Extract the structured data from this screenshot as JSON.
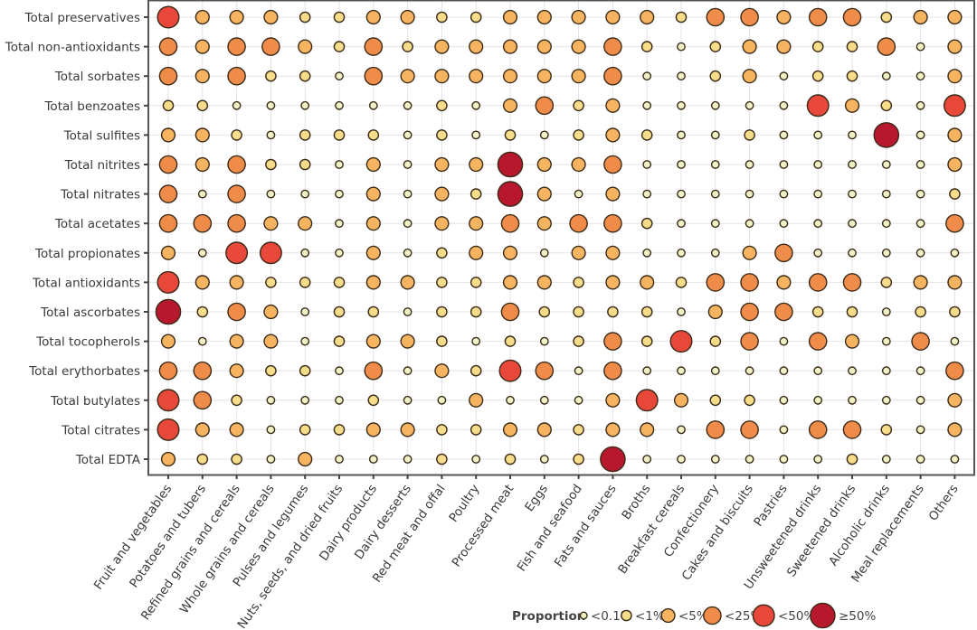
{
  "chart_data": {
    "type": "scatter",
    "subtype": "bubble-grid",
    "title": "",
    "xlabel": "",
    "ylabel": "",
    "grid": true,
    "rows": [
      "Total preservatives",
      "Total non-antioxidants",
      "Total sorbates",
      "Total benzoates",
      "Total sulfites",
      "Total nitrites",
      "Total nitrates",
      "Total acetates",
      "Total propionates",
      "Total antioxidants",
      "Total ascorbates",
      "Total tocopherols",
      "Total erythorbates",
      "Total butylates",
      "Total citrates",
      "Total EDTA"
    ],
    "columns": [
      "Fruit and vegetables",
      "Potatoes and tubers",
      "Refined grains and cereals",
      "Whole grains and cereals",
      "Pulses and legumes",
      "Nuts, seeds, and dried fruits",
      "Dairy products",
      "Dairy desserts",
      "Red meat and offal",
      "Poultry",
      "Processed meat",
      "Eggs",
      "Fish and seafood",
      "Fats and sauces",
      "Broths",
      "Breakfast cereals",
      "Confectionery",
      "Cakes and biscuits",
      "Pastries",
      "Unsweetened drinks",
      "Sweetened drinks",
      "Alcoholic drinks",
      "Meal replacements",
      "Others"
    ],
    "value_encoding": "category index into legend.categories (0 = <0.1% ... 5 = ≥50%)",
    "values": [
      [
        4,
        2,
        2,
        2,
        1,
        1,
        2,
        2,
        1,
        1,
        2,
        2,
        2,
        2,
        2,
        1,
        3,
        3,
        2,
        3,
        3,
        1,
        2,
        2
      ],
      [
        3,
        2,
        3,
        3,
        2,
        1,
        3,
        1,
        2,
        2,
        2,
        2,
        2,
        3,
        1,
        0,
        1,
        2,
        2,
        1,
        1,
        3,
        0,
        2
      ],
      [
        3,
        2,
        3,
        1,
        1,
        0,
        3,
        2,
        2,
        2,
        2,
        2,
        2,
        3,
        0,
        0,
        1,
        2,
        0,
        1,
        1,
        0,
        0,
        2
      ],
      [
        1,
        1,
        0,
        0,
        0,
        0,
        0,
        0,
        1,
        0,
        2,
        3,
        1,
        2,
        0,
        0,
        0,
        0,
        0,
        4,
        2,
        1,
        0,
        4
      ],
      [
        2,
        2,
        1,
        0,
        1,
        1,
        1,
        0,
        1,
        0,
        1,
        0,
        1,
        2,
        1,
        0,
        0,
        1,
        0,
        0,
        0,
        5,
        0,
        2
      ],
      [
        3,
        2,
        3,
        1,
        1,
        0,
        2,
        0,
        2,
        2,
        5,
        2,
        2,
        3,
        0,
        0,
        0,
        0,
        0,
        0,
        0,
        0,
        0,
        2
      ],
      [
        3,
        0,
        3,
        0,
        0,
        0,
        2,
        0,
        2,
        1,
        5,
        2,
        0,
        2,
        0,
        0,
        0,
        0,
        0,
        0,
        0,
        0,
        0,
        1
      ],
      [
        3,
        3,
        3,
        2,
        2,
        0,
        2,
        0,
        2,
        2,
        3,
        2,
        3,
        3,
        1,
        0,
        0,
        0,
        0,
        0,
        0,
        0,
        0,
        3
      ],
      [
        2,
        0,
        4,
        4,
        0,
        0,
        2,
        0,
        1,
        2,
        2,
        0,
        2,
        2,
        0,
        0,
        0,
        2,
        3,
        0,
        0,
        0,
        0,
        0
      ],
      [
        4,
        2,
        2,
        1,
        1,
        1,
        2,
        2,
        1,
        1,
        2,
        2,
        1,
        2,
        2,
        1,
        3,
        3,
        2,
        3,
        3,
        1,
        2,
        2
      ],
      [
        5,
        1,
        3,
        2,
        0,
        1,
        1,
        0,
        1,
        1,
        3,
        1,
        1,
        1,
        1,
        0,
        2,
        3,
        3,
        1,
        1,
        0,
        1,
        1
      ],
      [
        2,
        0,
        2,
        2,
        0,
        1,
        2,
        2,
        1,
        0,
        1,
        0,
        1,
        3,
        1,
        4,
        1,
        3,
        0,
        3,
        2,
        0,
        3,
        0
      ],
      [
        3,
        3,
        2,
        1,
        1,
        0,
        3,
        0,
        2,
        1,
        4,
        3,
        0,
        3,
        0,
        0,
        0,
        0,
        0,
        0,
        0,
        0,
        0,
        3
      ],
      [
        4,
        3,
        1,
        0,
        0,
        0,
        1,
        0,
        0,
        2,
        0,
        0,
        0,
        2,
        4,
        2,
        1,
        1,
        0,
        0,
        0,
        0,
        0,
        2
      ],
      [
        4,
        2,
        2,
        0,
        1,
        1,
        2,
        2,
        1,
        1,
        2,
        2,
        1,
        2,
        2,
        0,
        3,
        3,
        0,
        3,
        3,
        1,
        0,
        2
      ],
      [
        2,
        1,
        1,
        0,
        2,
        0,
        0,
        0,
        1,
        0,
        1,
        0,
        1,
        5,
        0,
        0,
        0,
        0,
        0,
        0,
        1,
        0,
        0,
        0
      ]
    ],
    "legend": {
      "title": "Proportion",
      "position": "bottom-right",
      "categories": [
        {
          "label": "<0.1%",
          "color": "#eef2c4"
        },
        {
          "label": "<1%",
          "color": "#f7dc8a"
        },
        {
          "label": "<5%",
          "color": "#f6b460"
        },
        {
          "label": "<25%",
          "color": "#f08c4a"
        },
        {
          "label": "<50%",
          "color": "#e8483a"
        },
        {
          "label": "≥50%",
          "color": "#b8182e"
        }
      ]
    },
    "colors": {
      "marker_edge": "#3a2a18",
      "grid": "#e4e4e4",
      "frame": "#555555"
    }
  }
}
